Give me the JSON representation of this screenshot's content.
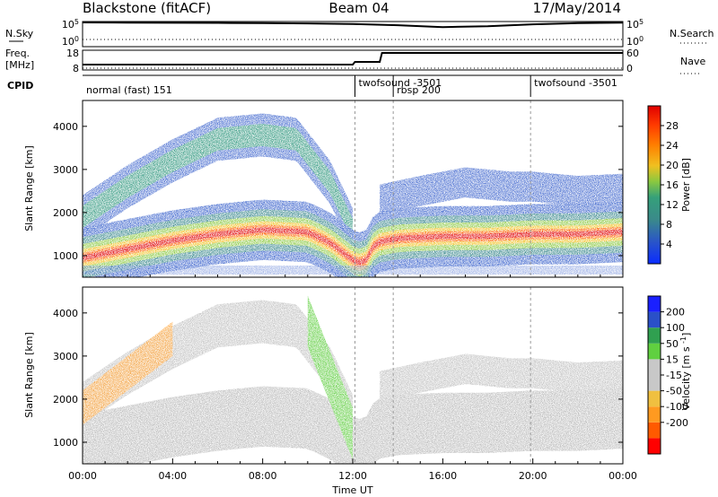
{
  "header": {
    "site": "Blackstone (fitACF)",
    "beam": "Beam 04",
    "date": "17/May/2014"
  },
  "side_labels": {
    "nsky": "N.Sky",
    "freq": "Freq.",
    "freq_unit": "[MHz]",
    "cpid": "CPID",
    "nsearch": "N.Search",
    "nave": "Nave"
  },
  "cpid_modes": [
    {
      "label": "normal (fast) 151",
      "start_h": 0
    },
    {
      "label": "twofsound -3501",
      "start_h": 12.1
    },
    {
      "label": "rbsp 200",
      "start_h": 13.8
    },
    {
      "label": "twofsound -3501",
      "start_h": 19.9
    }
  ],
  "colors": {
    "power_scale": [
      "#0a2cff",
      "#2a55c8",
      "#3a8a8a",
      "#35a07a",
      "#8ac840",
      "#f0c020",
      "#ff8000",
      "#ff3a00",
      "#e00000"
    ],
    "velocity_scale": [
      "#ff0000",
      "#ff5a00",
      "#ff9a20",
      "#f0c040",
      "#c8c8c8",
      "#c8c8c8",
      "#60d040",
      "#30a050",
      "#2a50c8",
      "#1a20ff"
    ],
    "ground_scatter": "#bbbbbb"
  },
  "chart_data": [
    {
      "type": "line",
      "panel": "noise",
      "y_left_ticks": [
        "10^5",
        "10^0"
      ],
      "y_right_ticks": [
        "10^5",
        "10^0"
      ],
      "x": [
        0,
        2,
        4,
        6,
        8,
        10,
        12,
        14,
        16,
        18,
        20,
        22,
        24
      ],
      "series": [
        {
          "name": "N.Sky",
          "values": [
            100000,
            90000,
            85000,
            80000,
            70000,
            60000,
            45000,
            25000,
            10000,
            15000,
            40000,
            70000,
            90000
          ]
        },
        {
          "name": "N.Search",
          "values": [
            1,
            1,
            1,
            1,
            1,
            1,
            1,
            1,
            1,
            1,
            1,
            1,
            1
          ]
        }
      ]
    },
    {
      "type": "line",
      "panel": "frequency",
      "y_left_ticks": [
        "18",
        "8"
      ],
      "y_right_ticks": [
        "60",
        "0"
      ],
      "x": [
        0,
        12,
        12.1,
        13.2,
        13.3,
        19.9,
        20.0,
        24
      ],
      "series": [
        {
          "name": "Freq.",
          "values": [
            10.5,
            10.5,
            12,
            12,
            17,
            17,
            17,
            17
          ]
        },
        {
          "name": "Nave",
          "values": [
            1,
            1,
            1,
            1,
            1,
            1,
            1,
            1
          ]
        }
      ]
    },
    {
      "type": "heatmap",
      "panel": "power",
      "title": "",
      "xlabel": "",
      "ylabel": "Slant Range [km]",
      "xlim": [
        0,
        24
      ],
      "ylim": [
        500,
        4600
      ],
      "y_ticks": [
        1000,
        2000,
        3000,
        4000
      ],
      "colorbar_label": "Power [dB]",
      "colorbar_ticks": [
        4,
        8,
        12,
        16,
        20,
        24,
        28
      ],
      "features": [
        {
          "name": "main-band",
          "x": [
            0,
            2,
            4,
            6,
            8,
            10,
            11,
            12,
            12.5,
            13,
            14,
            16,
            18,
            20,
            22,
            24
          ],
          "y": [
            950,
            1150,
            1350,
            1500,
            1600,
            1550,
            1300,
            900,
            800,
            1300,
            1400,
            1450,
            1450,
            1500,
            1500,
            1550
          ],
          "peak_db": 30
        },
        {
          "name": "upper-arc",
          "x": [
            0,
            2,
            4,
            6,
            8,
            9.5,
            11,
            12
          ],
          "y": [
            1900,
            2600,
            3200,
            3700,
            3800,
            3700,
            2700,
            1600
          ],
          "peak_db": 16
        },
        {
          "name": "far-band",
          "x": [
            13.2,
            15,
            17,
            19,
            20,
            22,
            24
          ],
          "y": [
            2300,
            2500,
            2700,
            2600,
            2600,
            2500,
            2550
          ],
          "peak_db": 8
        }
      ]
    },
    {
      "type": "heatmap",
      "panel": "velocity",
      "title": "",
      "xlabel": "Time UT",
      "ylabel": "Slant Range [km]",
      "xlim": [
        0,
        24
      ],
      "ylim": [
        500,
        4600
      ],
      "x_ticks": [
        "00:00",
        "04:00",
        "08:00",
        "12:00",
        "16:00",
        "20:00",
        "00:00"
      ],
      "y_ticks": [
        1000,
        2000,
        3000,
        4000
      ],
      "colorbar_label": "Velocity [m s^-1]",
      "colorbar_ticks": [
        200,
        100,
        50,
        15,
        -15,
        -50,
        -100,
        -200
      ],
      "features": [
        {
          "name": "ground-scatter",
          "value": 0
        },
        {
          "name": "positive-flow",
          "x": [
            10,
            11,
            12
          ],
          "y": [
            3800,
            2500,
            1200
          ],
          "value": 80
        },
        {
          "name": "negative-flow",
          "x": [
            0,
            2,
            4
          ],
          "y": [
            1800,
            2600,
            3400
          ],
          "value": -60
        }
      ]
    }
  ]
}
